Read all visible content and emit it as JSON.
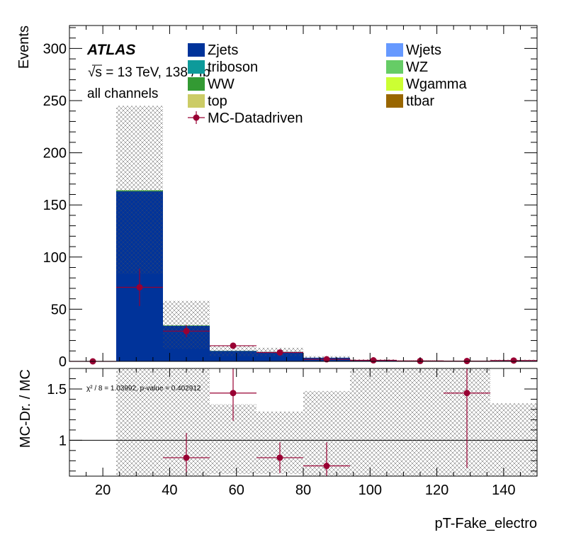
{
  "colors": {
    "Zjets": "#00339a",
    "triboson": "#0d9a9a",
    "WW": "#339a33",
    "top": "#cccc66",
    "Wjets": "#6699ff",
    "WZ": "#66cc66",
    "Wgamma": "#ccff33",
    "ttbar": "#996600",
    "data": "#990033"
  },
  "chart_data": [
    {
      "type": "bar",
      "panel": "main",
      "ylabel": "Events",
      "xlim": [
        10,
        150
      ],
      "ylim": [
        0,
        322
      ],
      "x_ticks": [
        20,
        40,
        60,
        80,
        100,
        120,
        140
      ],
      "y_ticks": [
        0,
        50,
        100,
        150,
        200,
        250,
        300
      ],
      "annotations": {
        "experiment": "ATLAS",
        "energy": "√s = 13 TeV, 138 / fb",
        "channel": "all channels"
      },
      "bin_edges": [
        10,
        24,
        38,
        52,
        66,
        80,
        94,
        108,
        122,
        136,
        150
      ],
      "series": [
        {
          "name": "Zjets",
          "values": [
            0,
            163,
            34,
            10,
            9,
            3.5,
            1,
            0.5,
            0.3,
            1
          ]
        },
        {
          "name": "WW",
          "values": [
            0,
            1,
            0.5,
            0.2,
            0.1,
            0,
            0,
            0,
            0,
            0
          ]
        }
      ],
      "stat_band": [
        {
          "lo": 0,
          "hi": 0
        },
        {
          "lo": 84,
          "hi": 245
        },
        {
          "lo": 12,
          "hi": 58
        },
        {
          "lo": 5,
          "hi": 15
        },
        {
          "lo": 5,
          "hi": 13
        },
        {
          "lo": 1.5,
          "hi": 5
        },
        {
          "lo": 0.5,
          "hi": 2
        },
        {
          "lo": 0.2,
          "hi": 1
        },
        {
          "lo": 0.1,
          "hi": 0.6
        },
        {
          "lo": 0.4,
          "hi": 1.6
        }
      ],
      "data_points": [
        {
          "x": 17,
          "y": 0,
          "xerr": 7,
          "yerr": 0
        },
        {
          "x": 31,
          "y": 71,
          "xerr": 7,
          "yerr": 18
        },
        {
          "x": 45,
          "y": 29,
          "xerr": 7,
          "yerr": 6
        },
        {
          "x": 59,
          "y": 15,
          "xerr": 7,
          "yerr": 3
        },
        {
          "x": 73,
          "y": 8.5,
          "xerr": 7,
          "yerr": 2
        },
        {
          "x": 87,
          "y": 2,
          "xerr": 7,
          "yerr": 1
        },
        {
          "x": 101,
          "y": 1,
          "xerr": 7,
          "yerr": 0.5
        },
        {
          "x": 115,
          "y": 0.4,
          "xerr": 7,
          "yerr": 0.3
        },
        {
          "x": 129,
          "y": 0.3,
          "xerr": 7,
          "yerr": 0.3
        },
        {
          "x": 143,
          "y": 0.8,
          "xerr": 7,
          "yerr": 0.5
        }
      ],
      "legend": [
        {
          "name": "Zjets",
          "marker": "box"
        },
        {
          "name": "triboson",
          "marker": "box"
        },
        {
          "name": "WW",
          "marker": "box"
        },
        {
          "name": "top",
          "marker": "box"
        },
        {
          "name": "MC-Datadriven",
          "marker": "point"
        },
        {
          "name": "Wjets",
          "marker": "box"
        },
        {
          "name": "WZ",
          "marker": "box"
        },
        {
          "name": "Wgamma",
          "marker": "box"
        },
        {
          "name": "ttbar",
          "marker": "box"
        }
      ]
    },
    {
      "type": "scatter",
      "panel": "ratio",
      "xlabel": "pT-Fake_electro",
      "ylabel": "MC-Dr. / MC",
      "xlim": [
        10,
        150
      ],
      "ylim": [
        0.65,
        1.7
      ],
      "y_ticks": [
        1,
        1.5
      ],
      "y_tick_labels": [
        "1",
        "1.5"
      ],
      "reference_line": 1,
      "chi2_text": "χ² / 8 = 1.03992, p-value = 0.402912",
      "band": [
        {
          "lo": 1,
          "hi": 1
        },
        {
          "lo": 0.65,
          "hi": 1.7
        },
        {
          "lo": 0.65,
          "hi": 1.7
        },
        {
          "lo": 0.67,
          "hi": 1.35
        },
        {
          "lo": 0.67,
          "hi": 1.28
        },
        {
          "lo": 0.65,
          "hi": 1.48
        },
        {
          "lo": 0.65,
          "hi": 1.7
        },
        {
          "lo": 0.65,
          "hi": 1.7
        },
        {
          "lo": 0.65,
          "hi": 1.7
        },
        {
          "lo": 0.65,
          "hi": 1.36
        }
      ],
      "points": [
        {
          "x": 45,
          "y": 0.83,
          "xerr": 7,
          "yerr_lo": 0.3,
          "yerr_hi": 0.24
        },
        {
          "x": 59,
          "y": 1.46,
          "xerr": 7,
          "yerr_lo": 0.27,
          "yerr_hi": 0.3
        },
        {
          "x": 73,
          "y": 0.83,
          "xerr": 7,
          "yerr_lo": 0.15,
          "yerr_hi": 0.15
        },
        {
          "x": 87,
          "y": 0.75,
          "xerr": 7,
          "yerr_lo": 0.3,
          "yerr_hi": 0.23
        },
        {
          "x": 129,
          "y": 1.46,
          "xerr": 7,
          "yerr_lo": 0.73,
          "yerr_hi": 0.3
        }
      ]
    }
  ]
}
